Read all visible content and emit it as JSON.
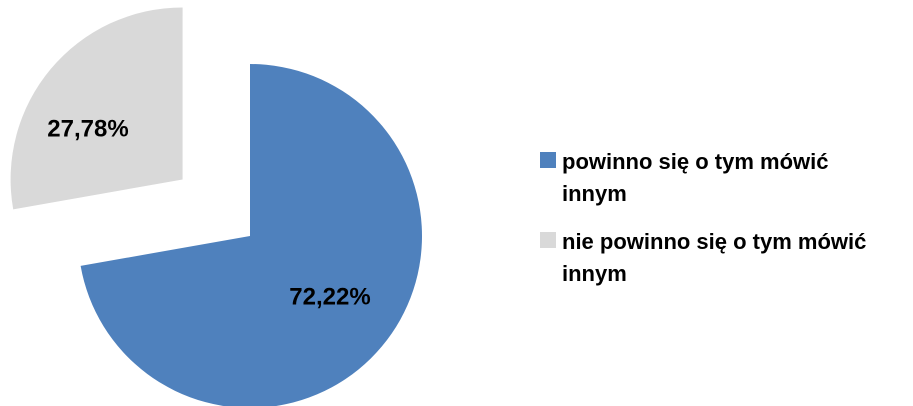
{
  "chart_data": {
    "type": "pie",
    "categories": [
      "powinno się o tym mówić innym",
      "nie powinno się o tym mówić innym"
    ],
    "values": [
      72.22,
      27.78
    ],
    "value_labels": [
      "72,22%",
      "27,78%"
    ],
    "colors": [
      "#4f81bd",
      "#d9d9d9"
    ],
    "legend": "right"
  }
}
